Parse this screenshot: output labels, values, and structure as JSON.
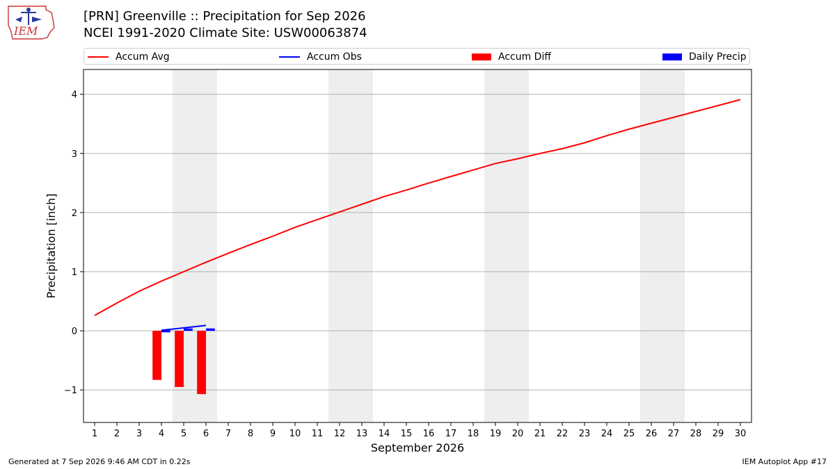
{
  "header": {
    "title_line1": "[PRN] Greenville :: Precipitation for Sep 2026",
    "title_line2": "NCEI 1991-2020 Climate Site: USW00063874",
    "logo_text": "IEM"
  },
  "colors": {
    "accum_avg": "#ff0000",
    "accum_obs": "#0000ff",
    "accum_diff": "#ff0000",
    "daily_precip": "#0000ff",
    "weekend_shade": "#eeeeee",
    "grid": "#b0b0b0"
  },
  "chart_data": {
    "type": "line",
    "xlabel": "September 2026",
    "ylabel": "Precipitation [inch]",
    "xlim": [
      0.5,
      30.5
    ],
    "ylim": [
      -1.55,
      4.42
    ],
    "yticks": [
      -1,
      0,
      1,
      2,
      3,
      4
    ],
    "ytick_labels": [
      "−1",
      "0",
      "1",
      "2",
      "3",
      "4"
    ],
    "x": [
      1,
      2,
      3,
      4,
      5,
      6,
      7,
      8,
      9,
      10,
      11,
      12,
      13,
      14,
      15,
      16,
      17,
      18,
      19,
      20,
      21,
      22,
      23,
      24,
      25,
      26,
      27,
      28,
      29,
      30
    ],
    "xtick_labels": [
      "1",
      "2",
      "3",
      "4",
      "5",
      "6",
      "7",
      "8",
      "9",
      "10",
      "11",
      "12",
      "13",
      "14",
      "15",
      "16",
      "17",
      "18",
      "19",
      "20",
      "21",
      "22",
      "23",
      "24",
      "25",
      "26",
      "27",
      "28",
      "29",
      "30"
    ],
    "weekend_spans": [
      [
        4.5,
        6.5
      ],
      [
        11.5,
        13.5
      ],
      [
        18.5,
        20.5
      ],
      [
        25.5,
        27.5
      ]
    ],
    "grid": "horizontal",
    "legend": "top",
    "series": [
      {
        "name": "Accum Avg",
        "type": "line",
        "x": [
          1,
          2,
          3,
          4,
          5,
          6,
          7,
          8,
          9,
          10,
          11,
          12,
          13,
          14,
          15,
          16,
          17,
          18,
          19,
          20,
          21,
          22,
          23,
          24,
          25,
          26,
          27,
          28,
          29,
          30
        ],
        "values": [
          0.26,
          0.47,
          0.67,
          0.84,
          1.0,
          1.16,
          1.31,
          1.46,
          1.6,
          1.75,
          1.88,
          2.01,
          2.14,
          2.27,
          2.38,
          2.5,
          2.61,
          2.72,
          2.83,
          2.91,
          3.0,
          3.08,
          3.18,
          3.3,
          3.41,
          3.51,
          3.61,
          3.71,
          3.81,
          3.91
        ]
      },
      {
        "name": "Accum Obs",
        "type": "line",
        "x": [
          4,
          5,
          6
        ],
        "values": [
          0.01,
          0.05,
          0.09
        ]
      },
      {
        "name": "Accum Diff",
        "type": "bar",
        "x": [
          4,
          5,
          6
        ],
        "values": [
          -0.83,
          -0.95,
          -1.07
        ]
      },
      {
        "name": "Daily Precip",
        "type": "bar",
        "x": [
          4,
          5,
          6
        ],
        "values": [
          0.01,
          0.04,
          0.04
        ]
      }
    ]
  },
  "footer": {
    "left": "Generated at 7 Sep 2026 9:46 AM CDT in 0.22s",
    "right": "IEM Autoplot App #17"
  }
}
